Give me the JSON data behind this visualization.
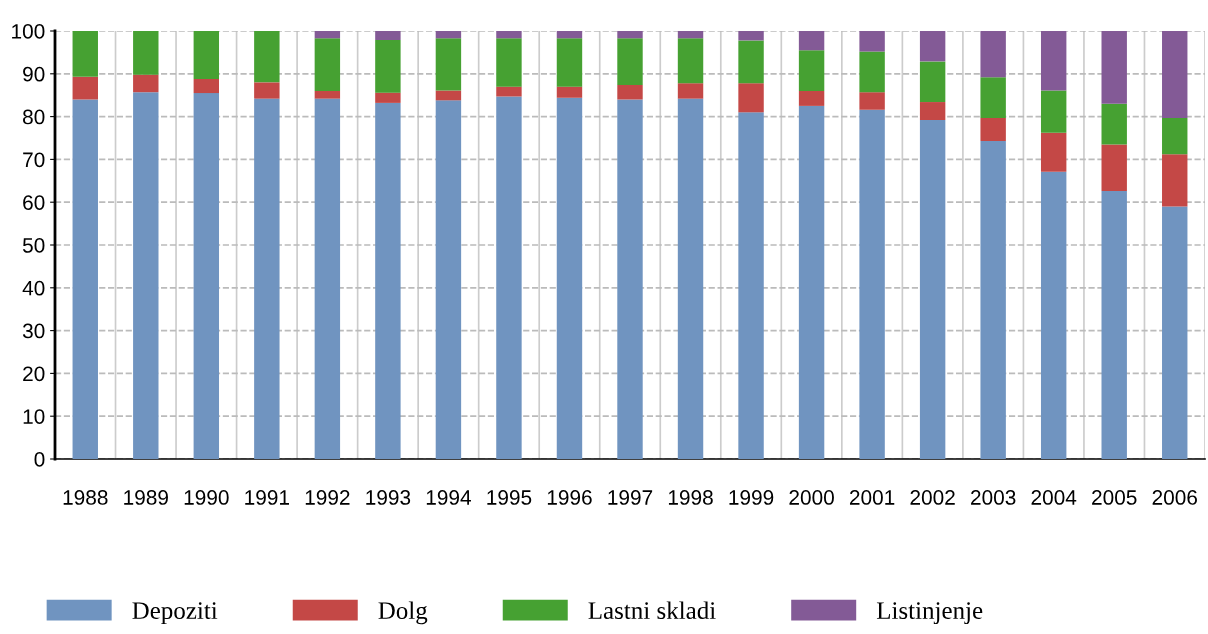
{
  "chart_data": {
    "type": "bar",
    "stacked": true,
    "categories": [
      "1988",
      "1989",
      "1990",
      "1991",
      "1992",
      "1993",
      "1994",
      "1995",
      "1996",
      "1997",
      "1998",
      "1999",
      "2000",
      "2001",
      "2002",
      "2003",
      "2004",
      "2005",
      "2006"
    ],
    "series": [
      {
        "name": "Depoziti",
        "color": "#7094c0",
        "values": [
          84,
          85.7,
          85.5,
          84.2,
          84.2,
          83.2,
          83.8,
          84.7,
          84.4,
          84,
          84.2,
          81,
          82.5,
          81.6,
          79.2,
          74.3,
          67.1,
          62.6,
          59
        ]
      },
      {
        "name": "Dolg",
        "color": "#c44846",
        "values": [
          5.3,
          4.1,
          3.3,
          3.8,
          1.8,
          2.4,
          2.3,
          2.3,
          2.6,
          3.4,
          3.6,
          6.8,
          3.5,
          4.1,
          4.2,
          5.4,
          9.1,
          10.9,
          12.2
        ]
      },
      {
        "name": "Lastni skladi",
        "color": "#46a132",
        "values": [
          10.7,
          10.2,
          11.2,
          12,
          12.3,
          12.3,
          12.2,
          11.3,
          11.3,
          10.9,
          10.5,
          10,
          9.5,
          9.5,
          9.5,
          9.5,
          9.9,
          9.5,
          8.5
        ]
      },
      {
        "name": "Listinjenje",
        "color": "#835a96",
        "values": [
          0,
          0,
          0,
          0,
          1.7,
          2.1,
          1.7,
          1.7,
          1.7,
          1.7,
          1.7,
          2.2,
          4.5,
          4.8,
          7.1,
          10.8,
          13.9,
          17,
          20.3
        ]
      }
    ],
    "ylim": [
      0,
      100
    ],
    "yticks": [
      0,
      10,
      20,
      30,
      40,
      50,
      60,
      70,
      80,
      90,
      100
    ],
    "grid": true,
    "legend": "bottom"
  }
}
